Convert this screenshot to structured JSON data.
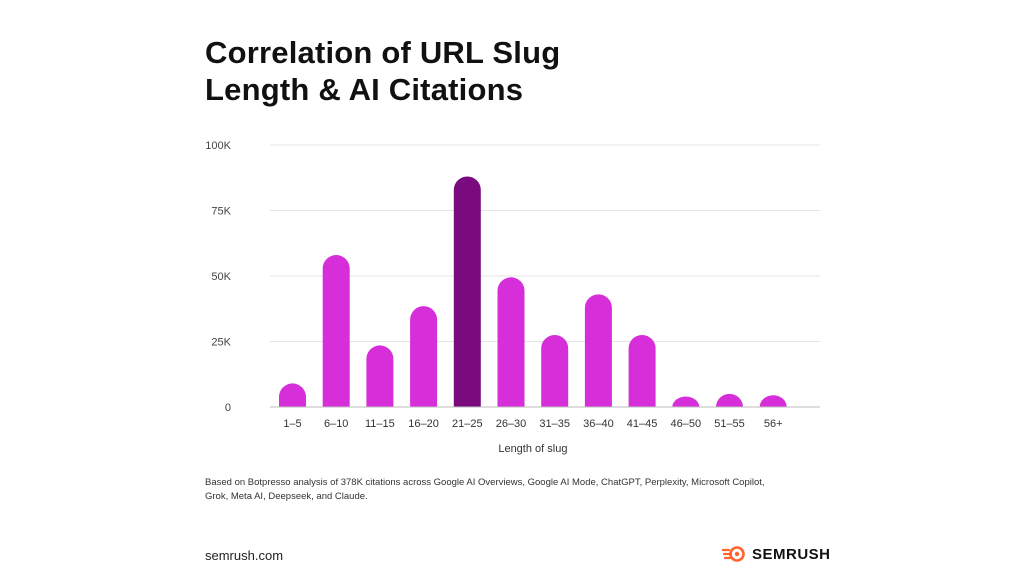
{
  "chart_data": {
    "type": "bar",
    "title_lines": [
      "Correlation of URL Slug",
      "Length & AI Citations"
    ],
    "xlabel": "Length of slug",
    "ylabel": "",
    "categories": [
      "1–5",
      "6–10",
      "11–15",
      "16–20",
      "21–25",
      "26–30",
      "31–35",
      "36–40",
      "41–45",
      "46–50",
      "51–55",
      "56+"
    ],
    "values": [
      9000,
      58000,
      23500,
      38500,
      88000,
      49500,
      27500,
      43000,
      27500,
      4000,
      5000,
      4500
    ],
    "ylim": [
      0,
      100000
    ],
    "yticks": [
      0,
      25000,
      50000,
      75000,
      100000
    ],
    "ytick_labels": [
      "0",
      "25K",
      "50K",
      "75K",
      "100K"
    ],
    "highlight_category": "21–25",
    "colors": {
      "bar": "#d62ed9",
      "highlight": "#7a0b7e",
      "grid": "#e4e4e4",
      "axis": "#bdbdbd"
    },
    "grid": true,
    "legend": "none"
  },
  "footnote": "Based on Botpresso analysis of 378K citations across Google AI Overviews, Google AI Mode, ChatGPT, Perplexity, Microsoft Copilot, Grok, Meta AI, Deepseek, and Claude.",
  "footer": {
    "site": "semrush.com",
    "brand": "SEMRUSH",
    "brand_icon": "semrush-fire-icon",
    "brand_color": "#ff642d"
  }
}
